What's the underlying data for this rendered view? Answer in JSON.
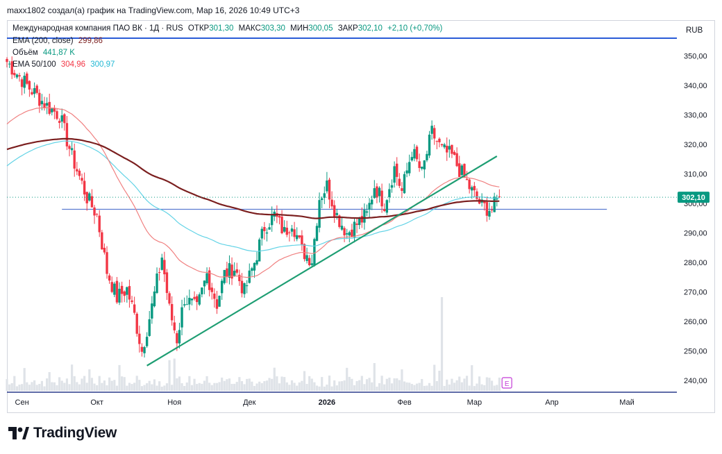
{
  "header": {
    "caption": "maxx1802 создал(а) график на TradingView.com, Мар 16, 2026 10:49 UTC+3"
  },
  "legend": {
    "symbol": "Международная компания ПАО ВК · 1Д · RUS",
    "open_label": "ОТКР",
    "open_value": "301,30",
    "high_label": "МАКС",
    "high_value": "303,30",
    "low_label": "МИН",
    "low_value": "300,05",
    "close_label": "ЗАКР",
    "close_value": "302,10",
    "change": "+2,10 (+0,70%)",
    "ema200_label": "EMA (200, close)",
    "ema200_value": "299,86",
    "volume_label": "Объём",
    "volume_value": "441,87 K",
    "ema50100_label": "EMA 50/100",
    "ema50_value": "304,96",
    "ema100_value": "300,97"
  },
  "currency": "RUB",
  "brand": {
    "name": "TradingView"
  },
  "colors": {
    "up": "#089981",
    "down": "#f23645",
    "ema200": "#7b1f1f",
    "ema50": "#f08080",
    "ema100": "#62d3e6",
    "trendline": "#1e9e73",
    "hline": "#5b7bd0",
    "topline": "#2a5bd7",
    "last_price_bg": "#089981",
    "volume": "#dfe3e8"
  },
  "chart_data": {
    "type": "candlestick",
    "y_ticks": [
      "350,00",
      "340,00",
      "330,00",
      "320,00",
      "310,00",
      "300,00",
      "290,00",
      "280,00",
      "270,00",
      "260,00",
      "250,00",
      "240,00"
    ],
    "y_tick_values": [
      350,
      340,
      330,
      320,
      310,
      300,
      290,
      280,
      270,
      260,
      250,
      240
    ],
    "ylim": [
      236,
      356
    ],
    "x_ticks": [
      {
        "label": "Сен",
        "day": 0,
        "bold": false
      },
      {
        "label": "Окт",
        "day": 30,
        "bold": false
      },
      {
        "label": "Ноя",
        "day": 61,
        "bold": false
      },
      {
        "label": "Дек",
        "day": 91,
        "bold": false
      },
      {
        "label": "2026",
        "day": 122,
        "bold": true
      },
      {
        "label": "Фев",
        "day": 153,
        "bold": false
      },
      {
        "label": "Мар",
        "day": 181,
        "bold": false
      },
      {
        "label": "Апр",
        "day": 212,
        "bold": false
      },
      {
        "label": "Май",
        "day": 242,
        "bold": false
      }
    ],
    "xlim": [
      -6,
      262
    ],
    "last_price": 302.1,
    "last_price_label": "302,10",
    "horizontal_level": 298,
    "horizontal_level_days": [
      16,
      234
    ],
    "trendlines": [
      {
        "from_day": 50,
        "from_price": 245,
        "to_day": 190,
        "to_price": 316
      }
    ],
    "anchors": [
      {
        "day": -6,
        "price": 348
      },
      {
        "day": 2,
        "price": 340
      },
      {
        "day": 10,
        "price": 333
      },
      {
        "day": 15,
        "price": 330
      },
      {
        "day": 20,
        "price": 316
      },
      {
        "day": 26,
        "price": 302
      },
      {
        "day": 30,
        "price": 296
      },
      {
        "day": 34,
        "price": 277
      },
      {
        "day": 38,
        "price": 268
      },
      {
        "day": 42,
        "price": 271
      },
      {
        "day": 45,
        "price": 262
      },
      {
        "day": 48,
        "price": 250
      },
      {
        "day": 52,
        "price": 265
      },
      {
        "day": 56,
        "price": 282
      },
      {
        "day": 59,
        "price": 264
      },
      {
        "day": 62,
        "price": 254
      },
      {
        "day": 65,
        "price": 268
      },
      {
        "day": 70,
        "price": 264
      },
      {
        "day": 74,
        "price": 276
      },
      {
        "day": 78,
        "price": 266
      },
      {
        "day": 81,
        "price": 276
      },
      {
        "day": 85,
        "price": 278
      },
      {
        "day": 89,
        "price": 270
      },
      {
        "day": 93,
        "price": 280
      },
      {
        "day": 97,
        "price": 292
      },
      {
        "day": 101,
        "price": 296
      },
      {
        "day": 105,
        "price": 290
      },
      {
        "day": 108,
        "price": 294
      },
      {
        "day": 112,
        "price": 284
      },
      {
        "day": 116,
        "price": 281
      },
      {
        "day": 119,
        "price": 302
      },
      {
        "day": 122,
        "price": 306
      },
      {
        "day": 126,
        "price": 296
      },
      {
        "day": 130,
        "price": 290
      },
      {
        "day": 134,
        "price": 293
      },
      {
        "day": 138,
        "price": 296
      },
      {
        "day": 141,
        "price": 306
      },
      {
        "day": 145,
        "price": 300
      },
      {
        "day": 149,
        "price": 312
      },
      {
        "day": 152,
        "price": 304
      },
      {
        "day": 156,
        "price": 318
      },
      {
        "day": 160,
        "price": 310
      },
      {
        "day": 164,
        "price": 324
      },
      {
        "day": 168,
        "price": 318
      },
      {
        "day": 172,
        "price": 316
      },
      {
        "day": 176,
        "price": 310
      },
      {
        "day": 180,
        "price": 304
      },
      {
        "day": 184,
        "price": 299
      },
      {
        "day": 188,
        "price": 298
      },
      {
        "day": 191,
        "price": 302
      }
    ],
    "big_volume_days": [
      168
    ]
  }
}
